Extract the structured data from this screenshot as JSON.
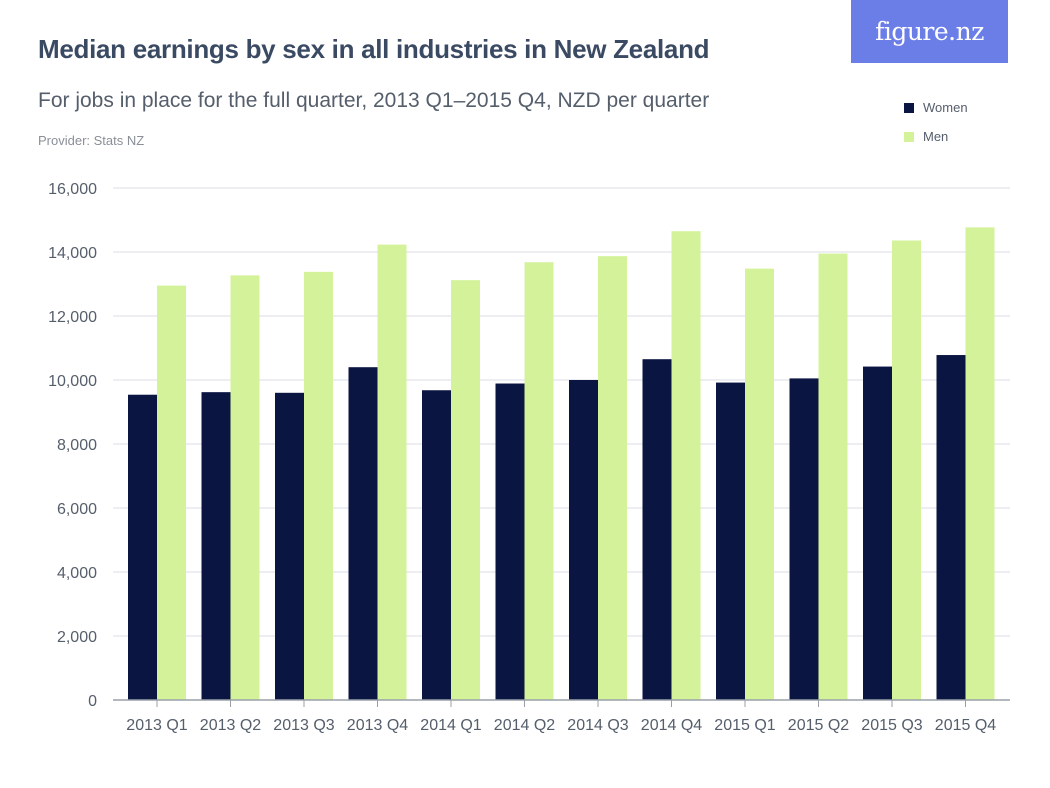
{
  "header": {
    "title": "Median earnings by sex in all industries in New Zealand",
    "subtitle": "For jobs in place for the full quarter, 2013 Q1–2015 Q4, NZD per quarter",
    "provider": "Provider: Stats NZ",
    "logo_text": "figure.nz"
  },
  "legend": {
    "items": [
      {
        "label": "Women",
        "color": "#0b1542"
      },
      {
        "label": "Men",
        "color": "#d4f29a"
      }
    ]
  },
  "colors": {
    "women": "#0b1542",
    "men": "#d4f29a",
    "logo_bg": "#6b7ee8",
    "grid": "#d9dde3",
    "axis": "#9aa0a8",
    "text": "#555e6b",
    "title": "#3b4a63"
  },
  "chart_data": {
    "type": "bar",
    "title": "Median earnings by sex in all industries in New Zealand",
    "subtitle": "For jobs in place for the full quarter, 2013 Q1–2015 Q4, NZD per quarter",
    "xlabel": "",
    "ylabel": "",
    "ylim": [
      0,
      16000
    ],
    "yticks": [
      0,
      2000,
      4000,
      6000,
      8000,
      10000,
      12000,
      14000,
      16000
    ],
    "ytick_labels": [
      "0",
      "2,000",
      "4,000",
      "6,000",
      "8,000",
      "10,000",
      "12,000",
      "14,000",
      "16,000"
    ],
    "grid": true,
    "legend_position": "top-right",
    "categories": [
      "2013 Q1",
      "2013 Q2",
      "2013 Q3",
      "2013 Q4",
      "2014 Q1",
      "2014 Q2",
      "2014 Q3",
      "2014 Q4",
      "2015 Q1",
      "2015 Q2",
      "2015 Q3",
      "2015 Q4"
    ],
    "series": [
      {
        "name": "Women",
        "values": [
          9540,
          9620,
          9600,
          10400,
          9680,
          9890,
          10000,
          10650,
          9920,
          10050,
          10420,
          10780
        ]
      },
      {
        "name": "Men",
        "values": [
          12950,
          13270,
          13380,
          14230,
          13120,
          13680,
          13870,
          14650,
          13480,
          13950,
          14360,
          14770
        ]
      }
    ]
  }
}
